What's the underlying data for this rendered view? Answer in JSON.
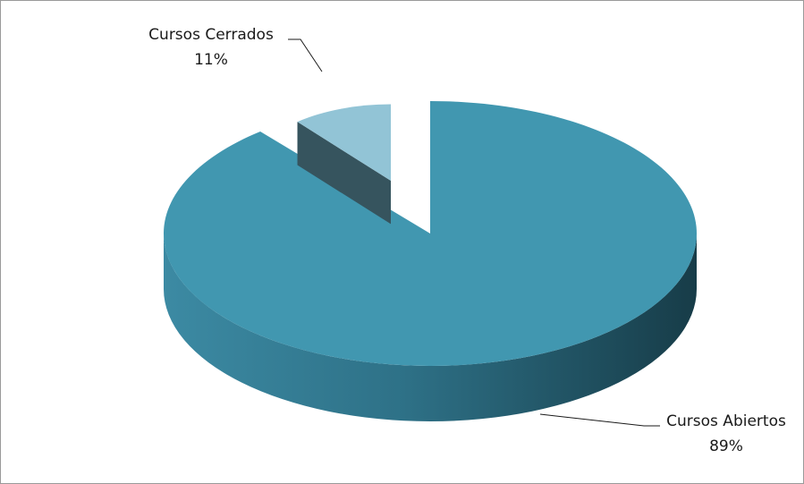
{
  "chart_data": {
    "type": "pie",
    "pie_style": "3d-exploded",
    "colors": {
      "open": "#4197b0",
      "closed": "#92c4d6",
      "open_dark": "#1e4a58",
      "closed_dark": "#36545e"
    },
    "slices": [
      {
        "label": "Cursos Abiertos",
        "value": 89,
        "display": "89%"
      },
      {
        "label": "Cursos Cerrados",
        "value": 11,
        "display": "11%"
      }
    ]
  }
}
